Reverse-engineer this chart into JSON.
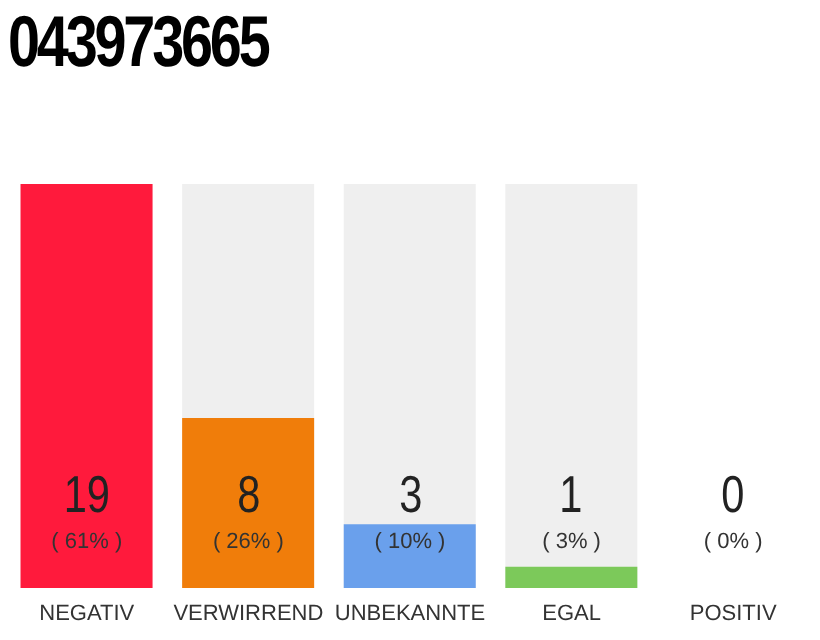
{
  "chart_data": {
    "type": "bar",
    "title": "043973665",
    "categories": [
      "NEGATIV",
      "VERWIRREND",
      "UNBEKANNTE",
      "EGAL",
      "POSITIV"
    ],
    "values": [
      19,
      8,
      3,
      1,
      0
    ],
    "colors": [
      "#ff1a3c",
      "#f07d0a",
      "#6aa0ec",
      "#7cc95a",
      "#22aa44"
    ],
    "data_labels": true,
    "annotations": [
      "( 61% )",
      "( 26% )",
      "( 10% )",
      "( 3% )",
      "( 0% )"
    ],
    "grid": false,
    "legend": false
  }
}
